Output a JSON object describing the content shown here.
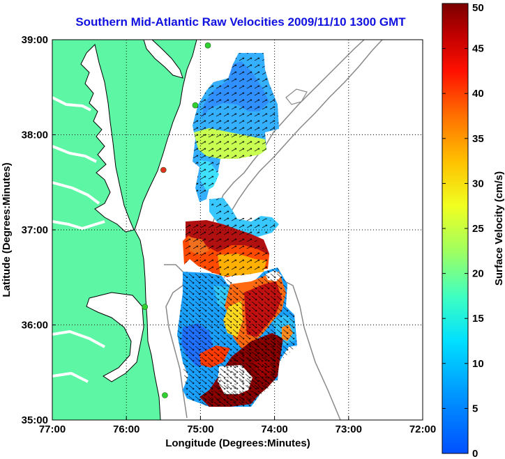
{
  "title": "Southern Mid-Atlantic Raw Velocities 2009/11/10 1300 GMT",
  "xlabel": "Longitude (Degrees:Minutes)",
  "ylabel": "Latitude (Degrees:Minutes)",
  "x_ticks": [
    "77:00",
    "76:00",
    "75:00",
    "74:00",
    "73:00",
    "72:00"
  ],
  "y_ticks": [
    "39:00",
    "38:00",
    "37:00",
    "36:00",
    "35:00"
  ],
  "colorbar": {
    "label": "Surface Velocity (cm/s)",
    "ticks": [
      "0",
      "5",
      "10",
      "15",
      "20",
      "25",
      "30",
      "35",
      "40",
      "45",
      "50"
    ],
    "min": 0,
    "max": 50
  },
  "colors": {
    "land": "#5cf6a4",
    "title": "#1010e0",
    "grid": "#000000",
    "station_green": "#30d030",
    "station_red": "#e03020"
  },
  "map": {
    "lon_range": [
      -77,
      -72
    ],
    "lat_range": [
      35,
      39
    ],
    "grid": true
  },
  "stations": [
    {
      "lon": -74.9,
      "lat": 38.94,
      "color": "green"
    },
    {
      "lon": -75.07,
      "lat": 38.31,
      "color": "green"
    },
    {
      "lon": -75.5,
      "lat": 37.63,
      "color": "red"
    },
    {
      "lon": -75.75,
      "lat": 36.19,
      "color": "green"
    },
    {
      "lon": -75.48,
      "lat": 35.26,
      "color": "green"
    }
  ]
}
